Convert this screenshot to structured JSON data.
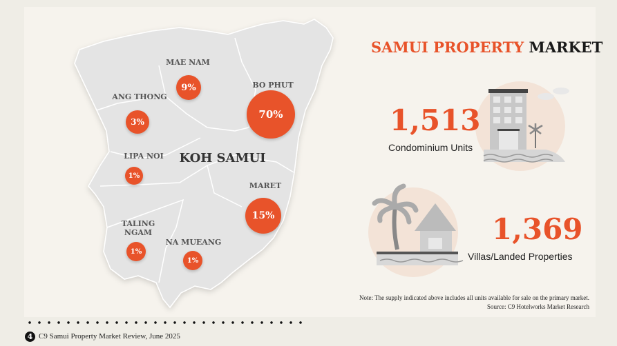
{
  "title": {
    "accent": "SAMUI PROPERTY",
    "rest": "MARKET"
  },
  "map": {
    "island_label": "KOH SAMUI",
    "districts": [
      {
        "name": "MAE NAM",
        "share": "9%"
      },
      {
        "name": "ANG THONG",
        "share": "3%"
      },
      {
        "name": "BO PHUT",
        "share": "70%"
      },
      {
        "name": "LIPA NOI",
        "share": "1%"
      },
      {
        "name": "MARET",
        "share": "15%"
      },
      {
        "name": "TALING NGAM",
        "share": "1%"
      },
      {
        "name": "NA MUEANG",
        "share": "1%"
      }
    ]
  },
  "stats": [
    {
      "value": "1,513",
      "label": "Condominium Units",
      "icon": "condo-building-icon"
    },
    {
      "value": "1,369",
      "label": "Villas/Landed Properties",
      "icon": "beach-villa-icon"
    }
  ],
  "note": "Note: The supply indicated above includes all units available for sale on the primary market.",
  "source": "Source: C9 Hotelworks Market Research",
  "footer": {
    "page": "4",
    "text": "C9 Samui Property Market Review, June 2025"
  },
  "colors": {
    "accent": "#e8532a",
    "background": "#f6f3ed",
    "map": "#e3e3e3"
  }
}
